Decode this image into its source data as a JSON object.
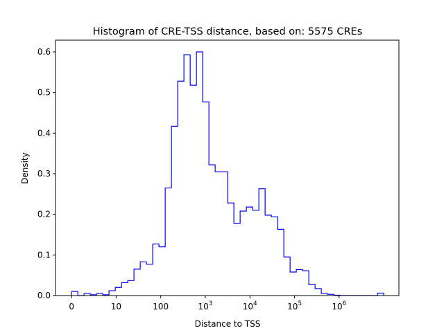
{
  "chart_data": {
    "type": "histogram",
    "title": "Histogram of CRE-TSS distance, based on: 5575 CREs",
    "xlabel": "Distance to TSS",
    "ylabel": "Density",
    "x_scale_note": "log10(distance+1)",
    "xlim": [
      -0.36,
      7.34
    ],
    "ylim": [
      0,
      0.629
    ],
    "bin_start": 0,
    "bin_width": 0.14,
    "values": [
      0.01,
      0,
      0.005,
      0.002,
      0.005,
      0.002,
      0.012,
      0.02,
      0.032,
      0.037,
      0.065,
      0.083,
      0.077,
      0.127,
      0.12,
      0.265,
      0.417,
      0.528,
      0.593,
      0.518,
      0.6,
      0.477,
      0.322,
      0.305,
      0.305,
      0.228,
      0.178,
      0.208,
      0.218,
      0.21,
      0.263,
      0.198,
      0.194,
      0.163,
      0.095,
      0.058,
      0.064,
      0.061,
      0.027,
      0.017,
      0.005,
      0.003,
      0.001,
      0,
      0,
      0,
      0,
      0,
      0,
      0.006
    ],
    "xticks": [
      {
        "value": 0,
        "label": "0",
        "sup": ""
      },
      {
        "value": 1,
        "label": "10",
        "sup": ""
      },
      {
        "value": 2,
        "label": "100",
        "sup": ""
      },
      {
        "value": 3,
        "label": "10",
        "sup": "3"
      },
      {
        "value": 4,
        "label": "10",
        "sup": "4"
      },
      {
        "value": 5,
        "label": "10",
        "sup": "5"
      },
      {
        "value": 6,
        "label": "10",
        "sup": "6"
      }
    ],
    "yticks": [
      {
        "value": 0,
        "label": "0.0"
      },
      {
        "value": 0.1,
        "label": "0.1"
      },
      {
        "value": 0.2,
        "label": "0.2"
      },
      {
        "value": 0.3,
        "label": "0.3"
      },
      {
        "value": 0.4,
        "label": "0.4"
      },
      {
        "value": 0.5,
        "label": "0.5"
      },
      {
        "value": 0.6,
        "label": "0.6"
      }
    ],
    "line_color": "#0000ff",
    "grid": false
  }
}
